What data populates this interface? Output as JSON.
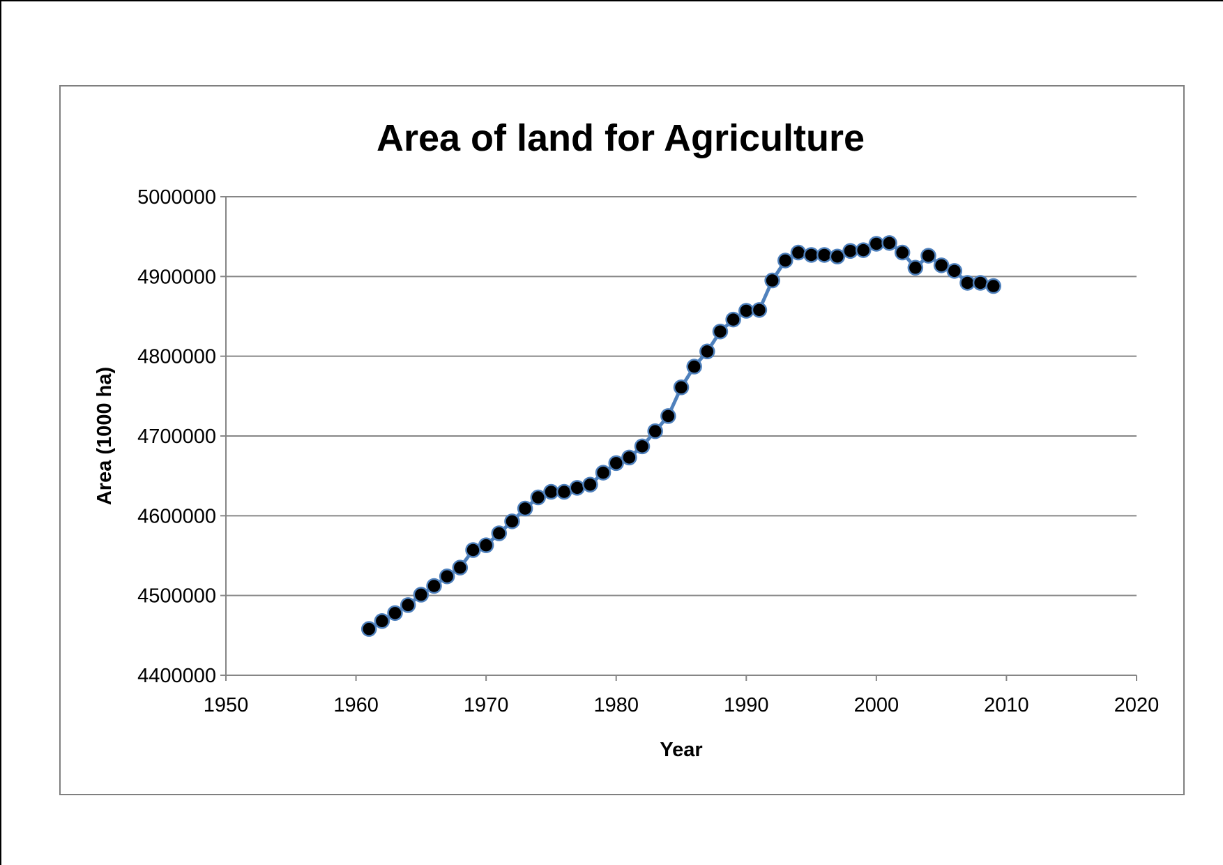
{
  "chart_data": {
    "type": "line",
    "title": "Area of land for Agriculture",
    "xlabel": "Year",
    "ylabel": "Area (1000 ha)",
    "xlim": [
      1950,
      2020
    ],
    "ylim": [
      4400000,
      5000000
    ],
    "x_ticks": [
      "1950",
      "1960",
      "1970",
      "1980",
      "1990",
      "2000",
      "2010",
      "2020"
    ],
    "y_ticks": [
      "4400000",
      "4500000",
      "4600000",
      "4700000",
      "4800000",
      "4900000",
      "5000000"
    ],
    "grid": "horizontal",
    "legend": "none",
    "line_color": "#4f81bd",
    "marker_color": "#000000",
    "series": [
      {
        "x": [
          1961,
          1962,
          1963,
          1964,
          1965,
          1966,
          1967,
          1968,
          1969,
          1970,
          1971,
          1972,
          1973,
          1974,
          1975,
          1976,
          1977,
          1978,
          1979,
          1980,
          1981,
          1982,
          1983,
          1984,
          1985,
          1986,
          1987,
          1988,
          1989,
          1990,
          1991,
          1992,
          1993,
          1994,
          1995,
          1996,
          1997,
          1998,
          1999,
          2000,
          2001,
          2002,
          2003,
          2004,
          2005,
          2006,
          2007,
          2008,
          2009
        ],
        "values": [
          4458000,
          4468000,
          4478000,
          4488000,
          4501000,
          4512000,
          4524000,
          4535000,
          4557000,
          4563000,
          4578000,
          4593000,
          4609000,
          4623000,
          4630000,
          4630000,
          4635000,
          4639000,
          4654000,
          4666000,
          4673000,
          4687000,
          4706000,
          4725000,
          4761000,
          4787000,
          4806000,
          4831000,
          4846000,
          4857000,
          4858000,
          4895000,
          4920000,
          4930000,
          4927000,
          4927000,
          4925000,
          4932000,
          4933000,
          4941000,
          4942000,
          4930000,
          4911000,
          4926000,
          4914000,
          4907000,
          4892000,
          4892000,
          4888000
        ]
      }
    ]
  }
}
